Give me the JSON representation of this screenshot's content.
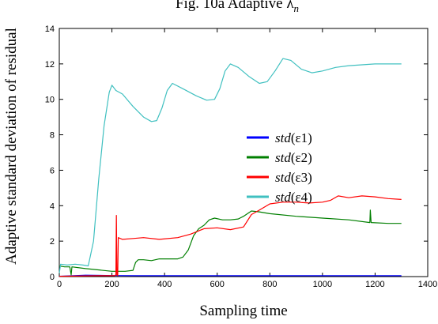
{
  "chart_data": {
    "type": "line",
    "title": "Fig. 10a Adaptive λ",
    "title_subscript": "n",
    "xlabel": "Sampling time",
    "ylabel": "Adaptive standard deviation of residual",
    "xlim": [
      0,
      1400
    ],
    "ylim": [
      0,
      14
    ],
    "x_ticks": [
      0,
      200,
      400,
      600,
      800,
      1000,
      1200,
      1400
    ],
    "y_ticks": [
      0,
      2,
      4,
      6,
      8,
      10,
      12,
      14
    ],
    "grid": false,
    "legend_position": "center-right",
    "series": [
      {
        "name_prefix": "std",
        "name_suffix": "(ε1)",
        "color": "#0000ff",
        "points": [
          [
            0,
            0.02
          ],
          [
            100,
            0.08
          ],
          [
            200,
            0.06
          ],
          [
            300,
            0.05
          ],
          [
            400,
            0.05
          ],
          [
            600,
            0.05
          ],
          [
            800,
            0.05
          ],
          [
            1000,
            0.05
          ],
          [
            1200,
            0.05
          ],
          [
            1300,
            0.05
          ]
        ]
      },
      {
        "name_prefix": "std",
        "name_suffix": "(ε2)",
        "color": "#007f00",
        "points": [
          [
            0,
            0.6
          ],
          [
            20,
            0.55
          ],
          [
            40,
            0.55
          ],
          [
            45,
            0.1
          ],
          [
            48,
            0.55
          ],
          [
            100,
            0.45
          ],
          [
            200,
            0.3
          ],
          [
            250,
            0.3
          ],
          [
            280,
            0.35
          ],
          [
            290,
            0.8
          ],
          [
            300,
            0.95
          ],
          [
            320,
            0.95
          ],
          [
            350,
            0.9
          ],
          [
            380,
            1.0
          ],
          [
            420,
            1.0
          ],
          [
            450,
            1.0
          ],
          [
            470,
            1.1
          ],
          [
            490,
            1.5
          ],
          [
            510,
            2.3
          ],
          [
            530,
            2.7
          ],
          [
            550,
            2.9
          ],
          [
            570,
            3.2
          ],
          [
            590,
            3.3
          ],
          [
            620,
            3.2
          ],
          [
            650,
            3.2
          ],
          [
            680,
            3.25
          ],
          [
            700,
            3.4
          ],
          [
            730,
            3.7
          ],
          [
            760,
            3.65
          ],
          [
            800,
            3.55
          ],
          [
            900,
            3.4
          ],
          [
            1000,
            3.3
          ],
          [
            1100,
            3.2
          ],
          [
            1180,
            3.05
          ],
          [
            1182,
            3.75
          ],
          [
            1185,
            3.05
          ],
          [
            1250,
            3.0
          ],
          [
            1300,
            3.0
          ]
        ]
      },
      {
        "name_prefix": "std",
        "name_suffix": "(ε3)",
        "color": "#ff0000",
        "points": [
          [
            0,
            0.02
          ],
          [
            150,
            0.05
          ],
          [
            210,
            0.05
          ],
          [
            215,
            0.1
          ],
          [
            217,
            3.45
          ],
          [
            219,
            0.1
          ],
          [
            222,
            0.05
          ],
          [
            224,
            2.2
          ],
          [
            240,
            2.1
          ],
          [
            280,
            2.15
          ],
          [
            320,
            2.2
          ],
          [
            380,
            2.1
          ],
          [
            450,
            2.2
          ],
          [
            500,
            2.4
          ],
          [
            550,
            2.7
          ],
          [
            600,
            2.75
          ],
          [
            650,
            2.65
          ],
          [
            700,
            2.8
          ],
          [
            730,
            3.5
          ],
          [
            760,
            3.75
          ],
          [
            800,
            4.1
          ],
          [
            850,
            4.2
          ],
          [
            900,
            4.2
          ],
          [
            950,
            4.15
          ],
          [
            1000,
            4.2
          ],
          [
            1030,
            4.3
          ],
          [
            1060,
            4.55
          ],
          [
            1100,
            4.45
          ],
          [
            1150,
            4.55
          ],
          [
            1200,
            4.5
          ],
          [
            1250,
            4.4
          ],
          [
            1300,
            4.35
          ]
        ]
      },
      {
        "name_prefix": "std",
        "name_suffix": "(ε4)",
        "color": "#40c0c0",
        "points": [
          [
            0,
            0.2
          ],
          [
            5,
            0.7
          ],
          [
            30,
            0.65
          ],
          [
            60,
            0.7
          ],
          [
            90,
            0.65
          ],
          [
            110,
            0.6
          ],
          [
            130,
            2.0
          ],
          [
            150,
            5.5
          ],
          [
            170,
            8.5
          ],
          [
            190,
            10.4
          ],
          [
            200,
            10.8
          ],
          [
            215,
            10.5
          ],
          [
            240,
            10.3
          ],
          [
            280,
            9.6
          ],
          [
            320,
            9.0
          ],
          [
            350,
            8.75
          ],
          [
            370,
            8.8
          ],
          [
            390,
            9.5
          ],
          [
            410,
            10.5
          ],
          [
            430,
            10.9
          ],
          [
            470,
            10.6
          ],
          [
            520,
            10.2
          ],
          [
            560,
            9.95
          ],
          [
            590,
            10.0
          ],
          [
            610,
            10.6
          ],
          [
            630,
            11.6
          ],
          [
            650,
            12.0
          ],
          [
            680,
            11.8
          ],
          [
            720,
            11.3
          ],
          [
            760,
            10.9
          ],
          [
            790,
            11.0
          ],
          [
            820,
            11.6
          ],
          [
            850,
            12.3
          ],
          [
            880,
            12.2
          ],
          [
            920,
            11.7
          ],
          [
            960,
            11.5
          ],
          [
            1000,
            11.6
          ],
          [
            1050,
            11.8
          ],
          [
            1100,
            11.9
          ],
          [
            1200,
            12.0
          ],
          [
            1300,
            12.0
          ]
        ]
      }
    ]
  }
}
